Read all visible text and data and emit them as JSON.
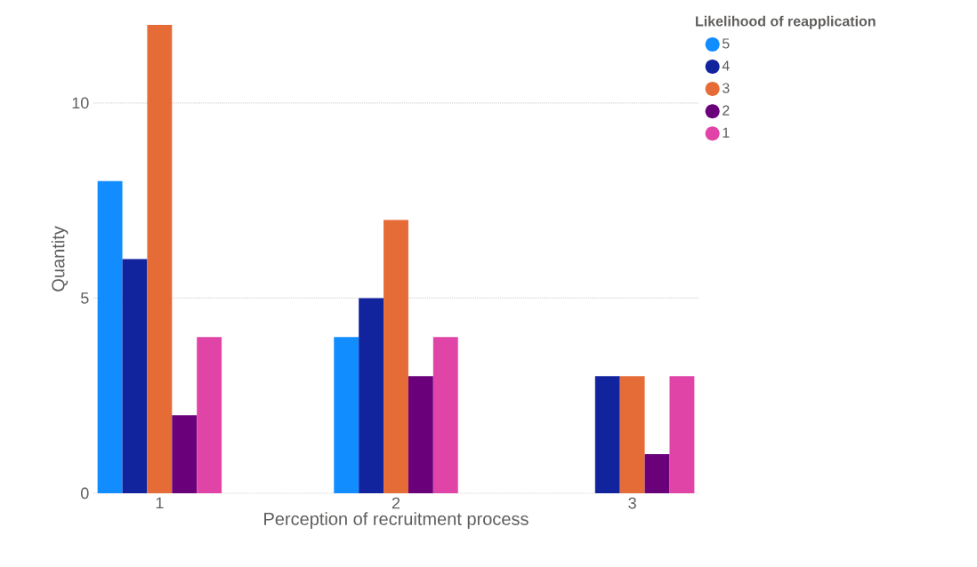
{
  "chart_data": {
    "type": "bar",
    "xlabel": "Perception of recruitment process",
    "ylabel": "Quantity",
    "legend_title": "Likelihood of reapplication",
    "categories": [
      "1",
      "2",
      "3"
    ],
    "series": [
      {
        "name": "5",
        "color": "#118dff",
        "values": [
          8,
          4,
          null
        ]
      },
      {
        "name": "4",
        "color": "#12239e",
        "values": [
          6,
          5,
          3
        ]
      },
      {
        "name": "3",
        "color": "#e66c37",
        "values": [
          12,
          7,
          3
        ]
      },
      {
        "name": "2",
        "color": "#6b007b",
        "values": [
          2,
          3,
          1
        ]
      },
      {
        "name": "1",
        "color": "#e044a7",
        "values": [
          4,
          4,
          3
        ]
      }
    ],
    "ylim": [
      0,
      12
    ],
    "yticks": [
      0,
      5,
      10
    ],
    "grid": "y",
    "legend": "top right"
  }
}
